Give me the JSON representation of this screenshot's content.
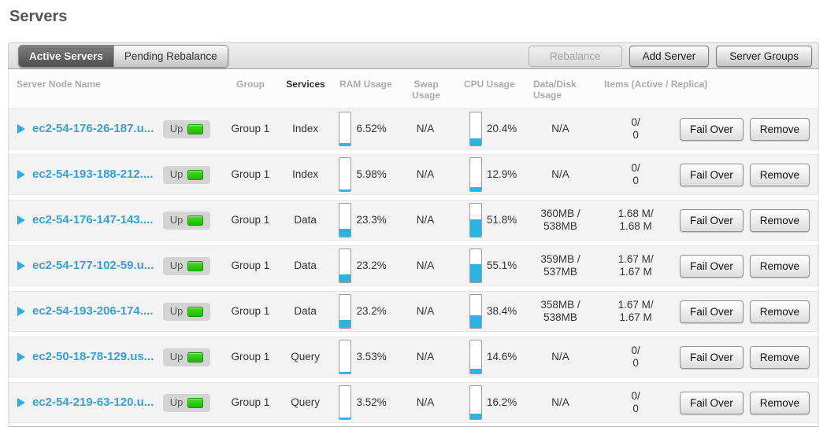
{
  "page": {
    "title": "Servers"
  },
  "tabs": [
    {
      "label": "Active Servers",
      "active": true
    },
    {
      "label": "Pending Rebalance",
      "active": false
    }
  ],
  "toolbar": {
    "rebalance_label": "Rebalance",
    "add_server_label": "Add Server",
    "server_groups_label": "Server Groups"
  },
  "table": {
    "headers": {
      "name": "Server Node Name",
      "group": "Group",
      "services": "Services",
      "ram": "RAM Usage",
      "swap": "Swap Usage",
      "cpu": "CPU Usage",
      "disk_line1": "Data/Disk",
      "disk_line2": "Usage",
      "items": "Items (Active / Replica)"
    },
    "row_buttons": {
      "fail_over": "Fail Over",
      "remove": "Remove"
    },
    "rows": [
      {
        "name": "ec2-54-176-26-187.u...",
        "status": "Up",
        "group": "Group 1",
        "services": "Index",
        "ram": "6.52%",
        "ram_pct": 6.52,
        "swap": "N/A",
        "cpu": "20.4%",
        "cpu_pct": 20.4,
        "disk_line1": "N/A",
        "disk_line2": "",
        "items_line1": "0/",
        "items_line2": "0"
      },
      {
        "name": "ec2-54-193-188-212....",
        "status": "Up",
        "group": "Group 1",
        "services": "Index",
        "ram": "5.98%",
        "ram_pct": 5.98,
        "swap": "N/A",
        "cpu": "12.9%",
        "cpu_pct": 12.9,
        "disk_line1": "N/A",
        "disk_line2": "",
        "items_line1": "0/",
        "items_line2": "0"
      },
      {
        "name": "ec2-54-176-147-143....",
        "status": "Up",
        "group": "Group 1",
        "services": "Data",
        "ram": "23.3%",
        "ram_pct": 23.3,
        "swap": "N/A",
        "cpu": "51.8%",
        "cpu_pct": 51.8,
        "disk_line1": "360MB /",
        "disk_line2": "538MB",
        "items_line1": "1.68 M/",
        "items_line2": "1.68 M"
      },
      {
        "name": "ec2-54-177-102-59.u...",
        "status": "Up",
        "group": "Group 1",
        "services": "Data",
        "ram": "23.2%",
        "ram_pct": 23.2,
        "swap": "N/A",
        "cpu": "55.1%",
        "cpu_pct": 55.1,
        "disk_line1": "359MB /",
        "disk_line2": "537MB",
        "items_line1": "1.67 M/",
        "items_line2": "1.67 M"
      },
      {
        "name": "ec2-54-193-206-174....",
        "status": "Up",
        "group": "Group 1",
        "services": "Data",
        "ram": "23.2%",
        "ram_pct": 23.2,
        "swap": "N/A",
        "cpu": "38.4%",
        "cpu_pct": 38.4,
        "disk_line1": "358MB /",
        "disk_line2": "538MB",
        "items_line1": "1.67 M/",
        "items_line2": "1.67 M"
      },
      {
        "name": "ec2-50-18-78-129.us...",
        "status": "Up",
        "group": "Group 1",
        "services": "Query",
        "ram": "3.53%",
        "ram_pct": 3.53,
        "swap": "N/A",
        "cpu": "14.6%",
        "cpu_pct": 14.6,
        "disk_line1": "N/A",
        "disk_line2": "",
        "items_line1": "0/",
        "items_line2": "0"
      },
      {
        "name": "ec2-54-219-63-120.u...",
        "status": "Up",
        "group": "Group 1",
        "services": "Query",
        "ram": "3.52%",
        "ram_pct": 3.52,
        "swap": "N/A",
        "cpu": "16.2%",
        "cpu_pct": 16.2,
        "disk_line1": "N/A",
        "disk_line2": "",
        "items_line1": "0/",
        "items_line2": "0"
      }
    ]
  },
  "colors": {
    "link_blue": "#37a0d6",
    "bar_fill_cyan": "#29b4e2",
    "status_green": "#2bc60d",
    "active_tab_gray": "#4d4d4d"
  }
}
